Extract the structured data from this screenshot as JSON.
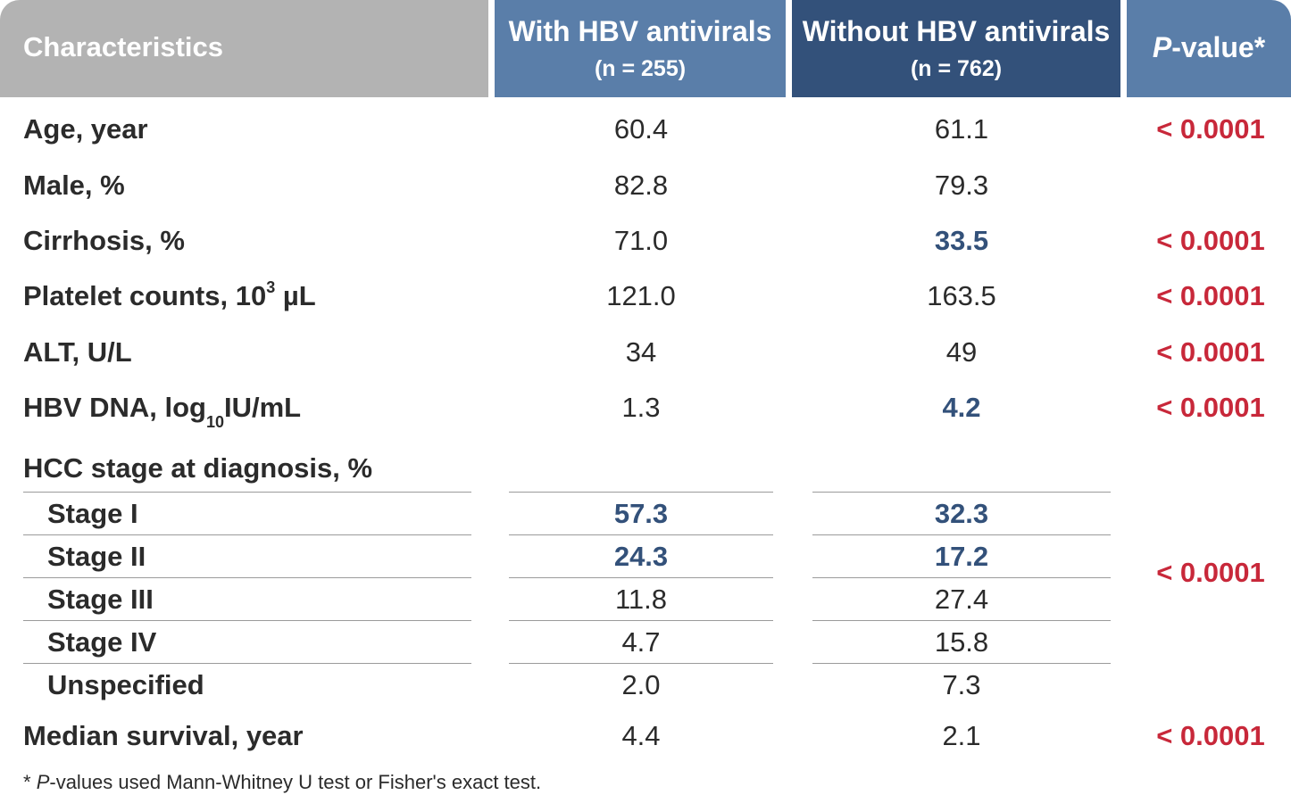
{
  "header": {
    "characteristics": "Characteristics",
    "with_title": "With HBV antivirals",
    "with_n": "(n = 255)",
    "without_title": "Without HBV antivirals",
    "without_n": "(n = 762)",
    "p_italic": "P",
    "p_rest": "-value*"
  },
  "rows": {
    "age": {
      "label": "Age, year",
      "with": "60.4",
      "without": "61.1",
      "p": "< 0.0001"
    },
    "male": {
      "label": "Male, %",
      "with": "82.8",
      "without": "79.3",
      "p": ""
    },
    "cirrhosis": {
      "label": "Cirrhosis, %",
      "with": "71.0",
      "without": "33.5",
      "p": "< 0.0001"
    },
    "platelet": {
      "label_pre": "Platelet counts, 10",
      "label_sup": "3",
      "label_post": " µL",
      "with": "121.0",
      "without": "163.5",
      "p": "< 0.0001"
    },
    "alt": {
      "label": "ALT, U/L",
      "with": "34",
      "without": "49",
      "p": "< 0.0001"
    },
    "hbvdna": {
      "label_pre": "HBV DNA, log",
      "label_sub": "10",
      "label_post": "IU/mL",
      "with": "1.3",
      "without": "4.2",
      "p": "< 0.0001"
    },
    "hcc": {
      "label": "HCC stage at diagnosis, %",
      "p": "< 0.0001"
    },
    "stage1": {
      "label": "Stage I",
      "with": "57.3",
      "without": "32.3"
    },
    "stage2": {
      "label": "Stage II",
      "with": "24.3",
      "without": "17.2"
    },
    "stage3": {
      "label": "Stage III",
      "with": "11.8",
      "without": "27.4"
    },
    "stage4": {
      "label": "Stage IV",
      "with": "4.7",
      "without": "15.8"
    },
    "unspecified": {
      "label": "Unspecified",
      "with": "2.0",
      "without": "7.3"
    },
    "survival": {
      "label": "Median survival, year",
      "with": "4.4",
      "without": "2.1",
      "p": "< 0.0001"
    }
  },
  "footnote": {
    "star": "* ",
    "italic": "P",
    "rest": "-values used Mann-Whitney U test or Fisher's exact test."
  },
  "colors": {
    "header_gray": "#b3b3b3",
    "header_blue": "#5a7ea9",
    "header_dark_blue": "#33517a",
    "p_value_red": "#c8283a",
    "highlight_blue": "#33517a"
  }
}
